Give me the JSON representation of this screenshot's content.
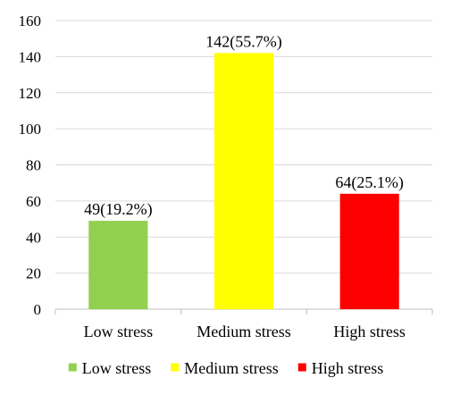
{
  "chart_data": {
    "type": "bar",
    "categories": [
      "Low stress",
      "Medium stress",
      "High stress"
    ],
    "values": [
      49,
      142,
      64
    ],
    "data_labels": [
      "49(19.2%)",
      "142(55.7%)",
      "64(25.1%)"
    ],
    "colors": [
      "#92d050",
      "#ffff00",
      "#ff0000"
    ],
    "ylim": [
      0,
      160
    ],
    "yticks": [
      0,
      20,
      40,
      60,
      80,
      100,
      120,
      140,
      160
    ],
    "grid": true,
    "legend": "bottom",
    "legend_entries": [
      "Low stress",
      "Medium stress",
      "High stress"
    ],
    "title": "",
    "xlabel": "",
    "ylabel": ""
  }
}
